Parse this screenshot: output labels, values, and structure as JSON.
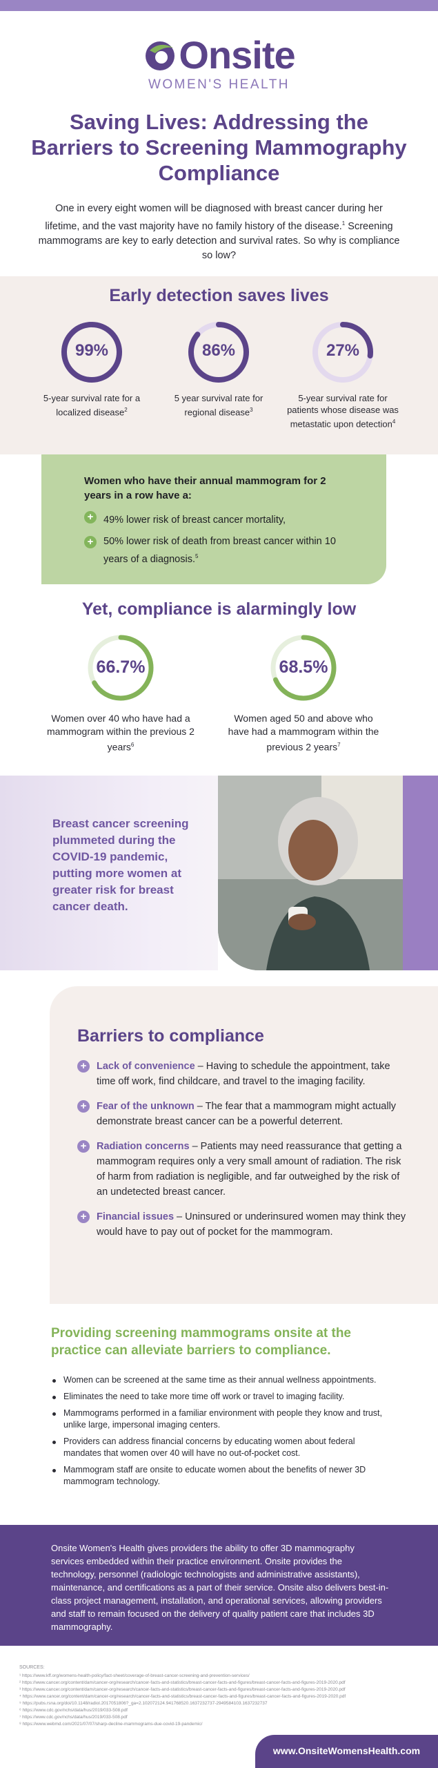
{
  "brand": {
    "name": "Onsite",
    "tagline": "WOMEN'S HEALTH",
    "colors": {
      "primary": "#5b4489",
      "accent": "#9a85c4",
      "green": "#84b359",
      "green_light": "#bdd5a3",
      "cream": "#f4eeeb"
    }
  },
  "header": {
    "title": "Saving Lives: Addressing the Barriers to Screening Mammography Compliance",
    "intro_1": "One in every eight women will be diagnosed with breast cancer during her lifetime, and the vast majority have no family history of the disease.",
    "intro_sup": "1",
    "intro_2": " Screening mammograms are key to early detection and survival rates. So why is compliance so low?"
  },
  "early_detection": {
    "heading": "Early detection saves lives",
    "stats": [
      {
        "value": "99%",
        "percent": 99,
        "label": "5-year survival rate for a localized disease",
        "sup": "2"
      },
      {
        "value": "86%",
        "percent": 86,
        "label": "5 year survival rate for regional disease",
        "sup": "3"
      },
      {
        "value": "27%",
        "percent": 27,
        "label": "5-year survival rate for patients whose disease was metastatic upon detection",
        "sup": "4"
      }
    ]
  },
  "annual": {
    "heading": "Women who have their annual mammogram for 2 years in a row have a:",
    "items": [
      {
        "text": "49% lower risk of breast cancer mortality,",
        "sup": ""
      },
      {
        "text": "50% lower risk of death from breast cancer within 10 years of a diagnosis.",
        "sup": "5"
      }
    ]
  },
  "compliance": {
    "heading": "Yet, compliance is alarmingly low",
    "stats": [
      {
        "value": "66.7%",
        "percent": 66.7,
        "label": "Women over 40 who have had a mammogram within the previous 2 years",
        "sup": "6"
      },
      {
        "value": "68.5%",
        "percent": 68.5,
        "label": "Women aged 50 and above who have had a mammogram within the previous 2 years",
        "sup": "7"
      }
    ]
  },
  "covid": {
    "text": "Breast cancer screening plummeted during the COVID-19 pandemic, putting more women at greater risk for breast cancer death."
  },
  "barriers": {
    "heading": "Barriers to compliance",
    "items": [
      {
        "title": "Lack of convenience",
        "text": " – Having to schedule the appointment, take time off work, find childcare, and travel to the imaging facility."
      },
      {
        "title": "Fear of the unknown",
        "text": " – The fear that a mammogram might actually demonstrate breast cancer can be a powerful deterrent."
      },
      {
        "title": "Radiation concerns",
        "text": " – Patients may need reassurance that getting a mammogram requires only a very small amount of radiation. The risk of harm from radiation is negligible, and far outweighed by the risk of an undetected breast cancer."
      },
      {
        "title": "Financial issues",
        "text": " – Uninsured or underinsured women may think they would have to pay out of pocket for the mammogram."
      }
    ]
  },
  "providing": {
    "heading": "Providing screening mammograms onsite at the practice can alleviate barriers to compliance.",
    "items": [
      "Women can be screened at the same time as their annual wellness appointments.",
      "Eliminates the need to take more time off work or travel to imaging facility.",
      "Mammograms performed in a familiar environment with people they know and trust, unlike large, impersonal imaging centers.",
      "Providers can address financial concerns by educating women about federal mandates that women over 40 will have no out-of-pocket cost.",
      "Mammogram staff are onsite to educate women about the benefits of newer 3D mammogram technology."
    ]
  },
  "about": {
    "text": "Onsite Women's Health gives providers the ability to offer 3D mammography services embedded within their practice environment. Onsite provides the technology, personnel (radiologic technologists and administrative assistants), maintenance, and certifications as a part of their service. Onsite also delivers best-in-class project management, installation, and operational services, allowing providers and staff to remain focused on the delivery of quality patient care that includes 3D mammography."
  },
  "sources": {
    "heading": "SOURCES:",
    "items": [
      "¹ https://www.kff.org/womens-health-policy/fact-sheet/coverage-of-breast-cancer-screening-and-prevention-services/",
      "² https://www.cancer.org/content/dam/cancer-org/research/cancer-facts-and-statistics/breast-cancer-facts-and-figures/breast-cancer-facts-and-figures-2019-2020.pdf",
      "³ https://www.cancer.org/content/dam/cancer-org/research/cancer-facts-and-statistics/breast-cancer-facts-and-figures/breast-cancer-facts-and-figures-2019-2020.pdf",
      "⁴ https://www.cancer.org/content/dam/cancer-org/research/cancer-facts-and-statistics/breast-cancer-facts-and-figures/breast-cancer-facts-and-figures-2019-2020.pdf",
      "⁵ https://pubs.rsna.org/doi/10.1148/radiol.2017051806?_ga=2.102072124.941768520.1637232737-2949584103.1637232737",
      "⁶ https://www.cdc.gov/nchs/data/hus/2019/033-508.pdf",
      "⁷ https://www.cdc.gov/nchs/data/hus/2019/033-508.pdf",
      "⁸ https://www.webmd.com/2021/07/07/sharp-decline-mammograms-due-covid-19-pandemic/"
    ]
  },
  "footer": {
    "url": "www.OnsiteWomensHealth.com"
  }
}
